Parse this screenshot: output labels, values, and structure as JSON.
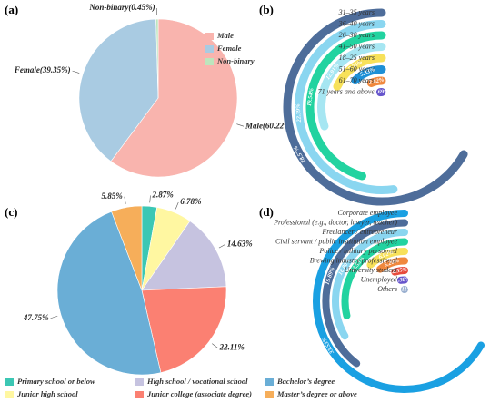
{
  "chart_data": [
    {
      "type": "pie",
      "panel_label": "(a)",
      "categories": [
        "Male",
        "Female",
        "Non-binary"
      ],
      "values": [
        60.22,
        39.35,
        0.45
      ],
      "value_labels": [
        "Male(60.22%)",
        "Female(39.35%)",
        "Non-binary(0.45%)"
      ],
      "colors": [
        "#f9b4ae",
        "#a9cbe2",
        "#bde5bd"
      ]
    },
    {
      "type": "radial_bar",
      "panel_label": "(b)",
      "categories": [
        "31–35 years",
        "36–40 years",
        "26–30 years",
        "41–50 years",
        "18–25 years",
        "51–60 years",
        "61–70 years",
        "71 years and above"
      ],
      "values": [
        28.57,
        22.39,
        19.54,
        12.91,
        7.75,
        5.33,
        2.82,
        0.69
      ],
      "value_labels": [
        "28.57%",
        "22.39%",
        "19.54%",
        "12.91%",
        "7.75%",
        "5.33%",
        "2.82%",
        "0.69%"
      ],
      "colors": [
        "#4e6d9a",
        "#8ad6f0",
        "#22d3a0",
        "#a6e6f2",
        "#f7e15a",
        "#1e90d6",
        "#f0883e",
        "#6655cc"
      ]
    },
    {
      "type": "pie",
      "panel_label": "(c)",
      "categories": [
        "Primary school or below",
        "Junior high school",
        "High school / vocational school",
        "Junior college (associate degree)",
        "Bachelor’s degree",
        "Master’s degree or above"
      ],
      "values": [
        2.87,
        6.78,
        14.63,
        22.11,
        47.75,
        5.85
      ],
      "value_labels": [
        "2.87%",
        "6.78%",
        "14.63%",
        "22.11%",
        "47.75%",
        "5.85%"
      ],
      "colors": [
        "#3cc7b4",
        "#fff7a1",
        "#c6c3e0",
        "#fb8072",
        "#6aaed6",
        "#f6ae5a"
      ]
    },
    {
      "type": "radial_bar",
      "panel_label": "(d)",
      "categories": [
        "Corporate employee",
        "Professional (e.g., doctor, lawyer, teacher)",
        "Freelancer / entrepreneur",
        "Civil servant / public institution employee",
        "Police / military personnel",
        "Brewing industry professional",
        "University student",
        "Unemployed",
        "Others"
      ],
      "values": [
        33.53,
        19.89,
        16.8,
        14.53,
        6.02,
        5.2,
        2.55,
        1.38,
        0.11
      ],
      "value_labels": [
        "33.53%",
        "19.89%",
        "16.80%",
        "14.53%",
        "6.02%",
        "5.20%",
        "2.55%",
        "1.38%",
        "0.11%"
      ],
      "colors": [
        "#1aa0e2",
        "#4e6d9a",
        "#8ad6f0",
        "#22d3a0",
        "#f7e15a",
        "#f0883e",
        "#e84a3c",
        "#6655cc",
        "#9ab0d0"
      ]
    }
  ]
}
